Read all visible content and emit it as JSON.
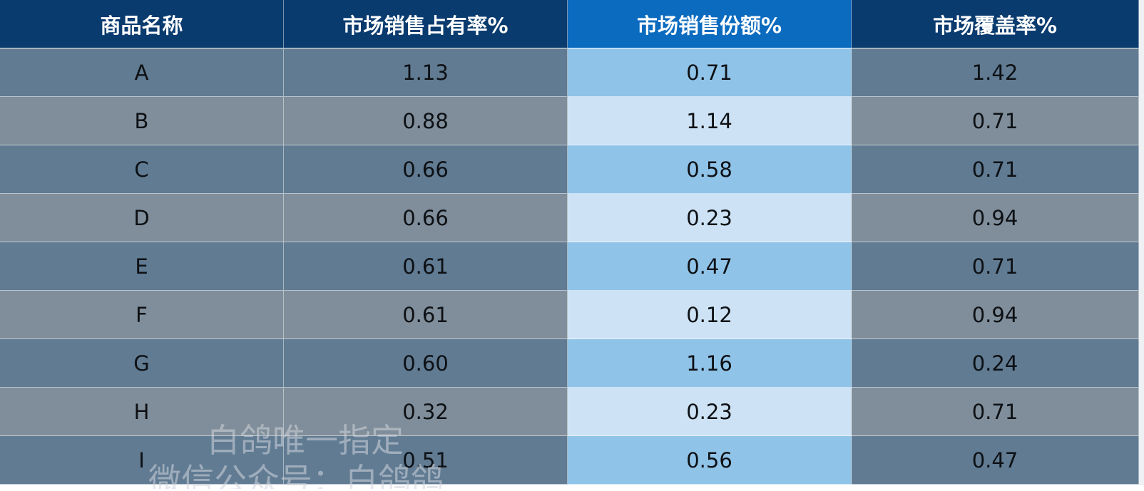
{
  "table": {
    "headers": [
      "商品名称",
      "市场销售占有率%",
      "市场销售份额%",
      "市场覆盖率%"
    ],
    "rows": [
      [
        "A",
        "1.13",
        "0.71",
        "1.42"
      ],
      [
        "B",
        "0.88",
        "1.14",
        "0.71"
      ],
      [
        "C",
        "0.66",
        "0.58",
        "0.71"
      ],
      [
        "D",
        "0.66",
        "0.23",
        "0.94"
      ],
      [
        "E",
        "0.61",
        "0.47",
        "0.71"
      ],
      [
        "F",
        "0.61",
        "0.12",
        "0.94"
      ],
      [
        "G",
        "0.60",
        "1.16",
        "0.24"
      ],
      [
        "H",
        "0.32",
        "0.23",
        "0.71"
      ],
      [
        "I",
        "0.51",
        "0.56",
        "0.47"
      ]
    ]
  },
  "watermark": {
    "line1": "白鸽唯一指定",
    "line2": "微信公众号：白鸽鸽"
  },
  "colors": {
    "header": "#0a3b6f",
    "header_accent": "#0b6bbf",
    "row_dark": "#607b92",
    "row_light": "#7f8e9a",
    "accent_dark": "#90c3e8",
    "accent_light": "#cde3f5"
  }
}
